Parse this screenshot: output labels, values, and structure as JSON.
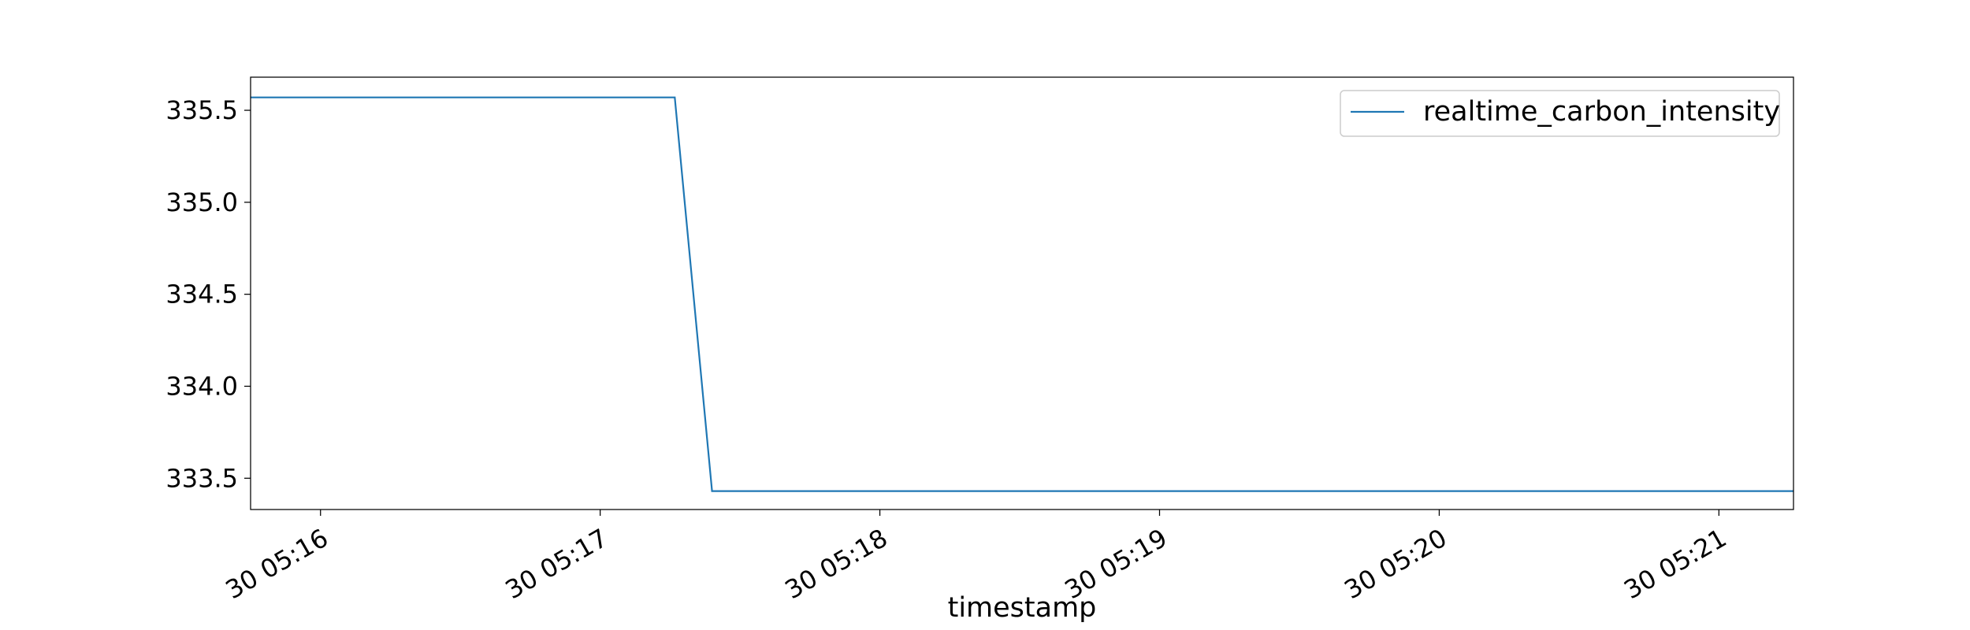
{
  "chart_data": {
    "type": "line",
    "title": "",
    "xlabel": "timestamp",
    "ylabel": "",
    "x_ticks": [
      "30 05:16",
      "30 05:17",
      "30 05:18",
      "30 05:19",
      "30 05:20",
      "30 05:21"
    ],
    "y_ticks": [
      "333.5",
      "334.0",
      "334.5",
      "335.0",
      "335.5"
    ],
    "xlim": [
      "05:15:45",
      "05:21:16"
    ],
    "ylim": [
      333.33,
      335.68
    ],
    "grid": false,
    "legend_position": "upper right",
    "series": [
      {
        "name": "realtime_carbon_intensity",
        "color": "#1f77b4",
        "points": [
          {
            "x": "05:15:45",
            "y": 335.57
          },
          {
            "x": "05:17:16",
            "y": 335.57
          },
          {
            "x": "05:17:24",
            "y": 333.43
          },
          {
            "x": "05:21:16",
            "y": 333.43
          }
        ]
      }
    ]
  }
}
